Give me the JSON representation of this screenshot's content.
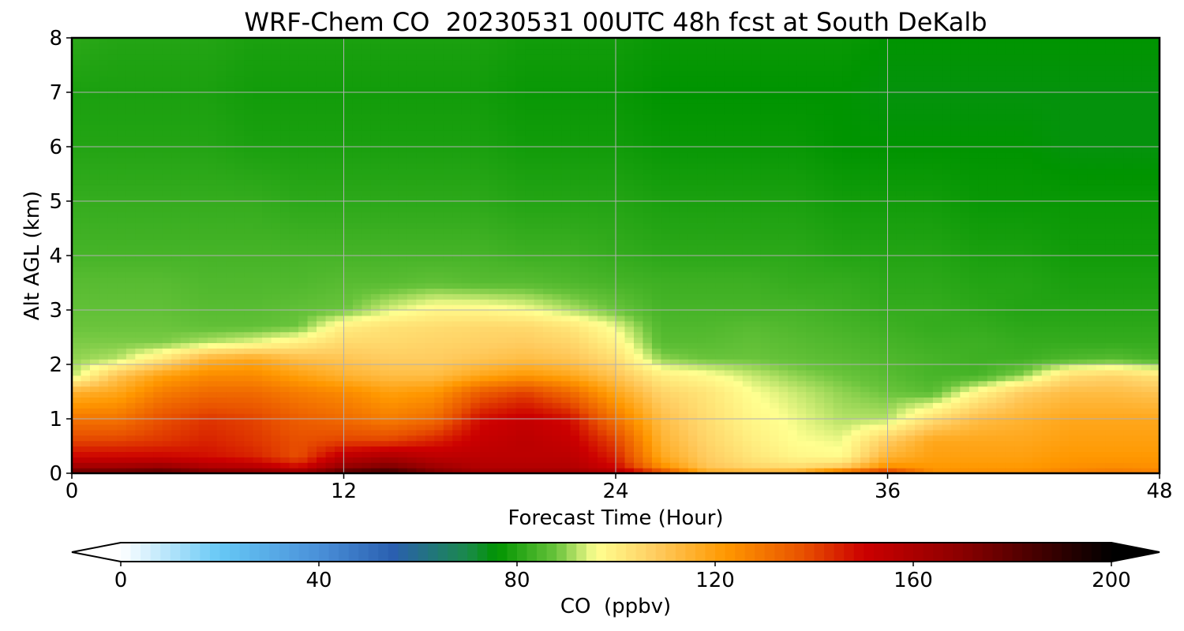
{
  "chart_data": {
    "type": "heatmap",
    "title": "WRF-Chem CO  20230531 00UTC 48h fcst at South DeKalb",
    "xlabel": "Forecast Time (Hour)",
    "ylabel": "Alt AGL (km)",
    "xlim": [
      0,
      48
    ],
    "ylim": [
      0,
      8
    ],
    "xticks": [
      "0",
      "12",
      "24",
      "36",
      "48"
    ],
    "yticks": [
      "0",
      "1",
      "2",
      "3",
      "4",
      "5",
      "6",
      "7",
      "8"
    ],
    "grid": true,
    "colorbar": {
      "label": "CO  (ppbv)",
      "range": [
        0,
        200
      ],
      "ticks": [
        "0",
        "40",
        "80",
        "120",
        "160",
        "200"
      ],
      "extend": "both",
      "stops": [
        {
          "v": 0,
          "c": "#ffffff"
        },
        {
          "v": 20,
          "c": "#66c8f5"
        },
        {
          "v": 40,
          "c": "#4a90d9"
        },
        {
          "v": 55,
          "c": "#2a5fb0"
        },
        {
          "v": 70,
          "c": "#1a8a4a"
        },
        {
          "v": 76,
          "c": "#009400"
        },
        {
          "v": 88,
          "c": "#6ac43c"
        },
        {
          "v": 96,
          "c": "#ffff90"
        },
        {
          "v": 108,
          "c": "#ffcc60"
        },
        {
          "v": 122,
          "c": "#ff9800"
        },
        {
          "v": 138,
          "c": "#e85000"
        },
        {
          "v": 150,
          "c": "#cc0000"
        },
        {
          "v": 170,
          "c": "#8a0000"
        },
        {
          "v": 200,
          "c": "#000000"
        }
      ]
    },
    "x_hours": [
      0,
      2,
      4,
      6,
      8,
      10,
      12,
      14,
      16,
      18,
      20,
      22,
      24,
      26,
      28,
      30,
      32,
      34,
      36,
      38,
      40,
      42,
      44,
      46,
      48
    ],
    "y_km": [
      0,
      0.1,
      0.3,
      0.6,
      1.0,
      1.5,
      1.8,
      2.1,
      2.4,
      2.7,
      3.0,
      3.5,
      4.0,
      5.0,
      6.0,
      7.0,
      8.0
    ],
    "values_ppbv": [
      [
        180,
        165,
        150,
        140,
        130,
        115,
        92,
        90,
        89,
        88,
        87,
        86,
        84,
        82,
        80,
        79,
        81
      ],
      [
        182,
        165,
        150,
        140,
        130,
        118,
        110,
        92,
        89,
        88,
        87,
        86,
        84,
        82,
        80,
        79,
        80
      ],
      [
        185,
        168,
        150,
        142,
        138,
        128,
        120,
        102,
        89,
        88,
        87,
        86,
        84,
        82,
        80,
        79,
        80
      ],
      [
        178,
        160,
        148,
        145,
        142,
        132,
        125,
        115,
        92,
        87,
        86,
        85,
        84,
        82,
        80,
        79,
        80
      ],
      [
        175,
        158,
        145,
        142,
        140,
        132,
        125,
        118,
        95,
        87,
        86,
        85,
        84,
        82,
        79,
        78,
        79
      ],
      [
        170,
        150,
        138,
        138,
        135,
        128,
        120,
        112,
        100,
        88,
        87,
        85,
        84,
        81,
        79,
        78,
        79
      ],
      [
        185,
        168,
        155,
        140,
        132,
        125,
        115,
        110,
        105,
        100,
        88,
        86,
        84,
        81,
        79,
        78,
        79
      ],
      [
        190,
        175,
        160,
        140,
        128,
        120,
        112,
        108,
        105,
        103,
        94,
        86,
        84,
        81,
        79,
        78,
        79
      ],
      [
        175,
        165,
        155,
        145,
        132,
        122,
        112,
        108,
        106,
        104,
        98,
        87,
        84,
        81,
        79,
        78,
        79
      ],
      [
        165,
        158,
        155,
        152,
        148,
        135,
        118,
        110,
        107,
        105,
        98,
        86,
        84,
        81,
        79,
        78,
        79
      ],
      [
        165,
        158,
        155,
        155,
        152,
        140,
        122,
        112,
        108,
        105,
        96,
        86,
        83,
        80,
        78,
        77,
        78
      ],
      [
        165,
        158,
        155,
        152,
        148,
        132,
        118,
        110,
        106,
        102,
        92,
        85,
        83,
        80,
        78,
        77,
        78
      ],
      [
        160,
        150,
        145,
        140,
        130,
        118,
        110,
        104,
        99,
        95,
        88,
        84,
        82,
        80,
        78,
        77,
        78
      ],
      [
        145,
        125,
        118,
        115,
        112,
        106,
        100,
        90,
        86,
        85,
        84,
        83,
        81,
        79,
        77,
        76,
        77
      ],
      [
        120,
        110,
        108,
        106,
        104,
        102,
        97,
        88,
        86,
        85,
        84,
        83,
        81,
        79,
        77,
        76,
        77
      ],
      [
        118,
        106,
        102,
        100,
        98,
        96,
        93,
        88,
        87,
        86,
        84,
        83,
        81,
        79,
        77,
        76,
        77
      ],
      [
        120,
        105,
        98,
        96,
        95,
        93,
        90,
        87,
        86,
        85,
        84,
        82,
        81,
        79,
        77,
        76,
        77
      ],
      [
        140,
        110,
        97,
        95,
        92,
        90,
        88,
        86,
        85,
        84,
        83,
        82,
        80,
        78,
        76,
        76,
        77
      ],
      [
        150,
        125,
        115,
        108,
        92,
        88,
        86,
        85,
        84,
        83,
        82,
        81,
        80,
        78,
        76,
        75,
        76
      ],
      [
        125,
        122,
        120,
        118,
        104,
        86,
        84,
        84,
        83,
        82,
        82,
        81,
        80,
        78,
        76,
        75,
        76
      ],
      [
        125,
        122,
        120,
        118,
        112,
        98,
        84,
        83,
        83,
        82,
        81,
        80,
        79,
        77,
        76,
        75,
        76
      ],
      [
        125,
        122,
        120,
        118,
        115,
        108,
        90,
        83,
        82,
        81,
        80,
        80,
        79,
        77,
        76,
        75,
        76
      ],
      [
        128,
        124,
        122,
        120,
        118,
        112,
        104,
        85,
        82,
        81,
        80,
        79,
        78,
        77,
        75,
        75,
        76
      ],
      [
        130,
        125,
        122,
        120,
        118,
        112,
        106,
        86,
        82,
        81,
        80,
        79,
        78,
        77,
        75,
        75,
        76
      ],
      [
        128,
        124,
        122,
        120,
        118,
        110,
        102,
        84,
        82,
        81,
        80,
        79,
        78,
        77,
        75,
        75,
        76
      ]
    ]
  }
}
